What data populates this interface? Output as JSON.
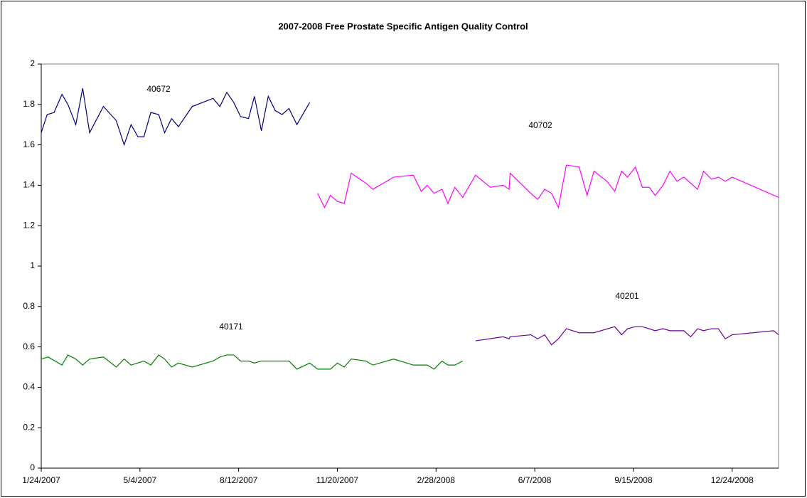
{
  "chart_data": {
    "type": "line",
    "title": "2007-2008 Free Prostate Specific Antigen Quality Control",
    "xlim": [
      "1/24/2007",
      "2/9/2009"
    ],
    "xticks": [
      "1/24/2007",
      "5/4/2007",
      "8/12/2007",
      "11/20/2007",
      "2/28/2008",
      "6/7/2008",
      "9/15/2008",
      "12/24/2008"
    ],
    "ylim": [
      0,
      2
    ],
    "yticks": [
      0,
      0.2,
      0.4,
      0.6,
      0.8,
      1,
      1.2,
      1.4,
      1.6,
      1.8,
      2
    ],
    "grid": false,
    "series": [
      {
        "name": "40672",
        "color": "#000080",
        "x": [
          "1/24/2007",
          "1/30/2007",
          "2/6/2007",
          "2/14/2007",
          "2/20/2007",
          "2/28/2007",
          "3/7/2007",
          "3/14/2007",
          "3/28/2007",
          "4/10/2007",
          "4/18/2007",
          "4/25/2007",
          "5/2/2007",
          "5/8/2007",
          "5/15/2007",
          "5/23/2007",
          "5/29/2007",
          "6/5/2007",
          "6/12/2007",
          "6/26/2007",
          "7/17/2007",
          "7/24/2007",
          "7/31/2007",
          "8/7/2007",
          "8/14/2007",
          "8/22/2007",
          "8/28/2007",
          "9/4/2007",
          "9/11/2007",
          "9/18/2007",
          "9/25/2007",
          "10/2/2007",
          "10/10/2007",
          "10/23/2007"
        ],
        "values": [
          1.66,
          1.75,
          1.76,
          1.85,
          1.8,
          1.7,
          1.88,
          1.66,
          1.79,
          1.72,
          1.6,
          1.7,
          1.64,
          1.64,
          1.76,
          1.75,
          1.66,
          1.73,
          1.69,
          1.79,
          1.83,
          1.79,
          1.86,
          1.81,
          1.74,
          1.73,
          1.84,
          1.67,
          1.84,
          1.77,
          1.75,
          1.78,
          1.7,
          1.81
        ]
      },
      {
        "name": "40702",
        "color": "#ff00ff",
        "x": [
          "10/31/2007",
          "11/7/2007",
          "11/13/2007",
          "11/20/2007",
          "11/27/2007",
          "12/4/2007",
          "12/19/2007",
          "12/26/2007",
          "1/16/2008",
          "2/5/2008",
          "2/13/2008",
          "2/19/2008",
          "2/26/2008",
          "3/5/2008",
          "3/11/2008",
          "3/18/2008",
          "3/26/2008",
          "4/8/2008",
          "4/23/2008",
          "5/6/2008",
          "5/12/2008",
          "5/13/2008",
          "6/3/2008",
          "6/10/2008",
          "6/17/2008",
          "6/24/2008",
          "7/1/2008",
          "7/9/2008",
          "7/22/2008",
          "7/30/2008",
          "8/6/2008",
          "8/19/2008",
          "8/27/2008",
          "9/3/2008",
          "9/9/2008",
          "9/17/2008",
          "9/24/2008",
          "10/1/2008",
          "10/7/2008",
          "10/15/2008",
          "10/22/2008",
          "10/29/2008",
          "11/5/2008",
          "11/12/2008",
          "11/19/2008",
          "11/25/2008",
          "12/3/2008",
          "12/10/2008",
          "12/17/2008",
          "12/24/2008",
          "2/9/2009"
        ],
        "values": [
          1.36,
          1.29,
          1.35,
          1.32,
          1.31,
          1.46,
          1.41,
          1.38,
          1.44,
          1.45,
          1.37,
          1.4,
          1.36,
          1.38,
          1.31,
          1.39,
          1.34,
          1.45,
          1.39,
          1.4,
          1.38,
          1.46,
          1.36,
          1.33,
          1.38,
          1.36,
          1.29,
          1.5,
          1.49,
          1.35,
          1.47,
          1.42,
          1.37,
          1.47,
          1.44,
          1.49,
          1.39,
          1.39,
          1.35,
          1.4,
          1.47,
          1.42,
          1.44,
          1.41,
          1.38,
          1.47,
          1.43,
          1.44,
          1.42,
          1.44,
          1.34
        ]
      },
      {
        "name": "40171",
        "color": "#008000",
        "x": [
          "1/24/2007",
          "1/31/2007",
          "2/14/2007",
          "2/20/2007",
          "2/28/2007",
          "3/7/2007",
          "3/14/2007",
          "3/28/2007",
          "4/10/2007",
          "4/18/2007",
          "4/25/2007",
          "5/8/2007",
          "5/15/2007",
          "5/23/2007",
          "5/29/2007",
          "6/5/2007",
          "6/12/2007",
          "6/26/2007",
          "7/17/2007",
          "7/24/2007",
          "7/31/2007",
          "8/7/2007",
          "8/14/2007",
          "8/22/2007",
          "8/28/2007",
          "9/4/2007",
          "10/2/2007",
          "10/10/2007",
          "10/23/2007",
          "10/31/2007",
          "11/13/2007",
          "11/20/2007",
          "11/27/2007",
          "12/4/2007",
          "12/19/2007",
          "12/26/2007",
          "1/16/2008",
          "2/5/2008",
          "2/19/2008",
          "2/26/2008",
          "3/5/2008",
          "3/11/2008",
          "3/18/2008",
          "3/26/2008"
        ],
        "values": [
          0.54,
          0.55,
          0.51,
          0.56,
          0.54,
          0.51,
          0.54,
          0.55,
          0.5,
          0.54,
          0.51,
          0.53,
          0.51,
          0.56,
          0.54,
          0.5,
          0.52,
          0.5,
          0.53,
          0.55,
          0.56,
          0.56,
          0.53,
          0.53,
          0.52,
          0.53,
          0.53,
          0.49,
          0.52,
          0.49,
          0.49,
          0.52,
          0.5,
          0.54,
          0.53,
          0.51,
          0.54,
          0.51,
          0.51,
          0.49,
          0.53,
          0.51,
          0.51,
          0.53
        ]
      },
      {
        "name": "40201",
        "color": "#660099",
        "x": [
          "4/8/2008",
          "5/6/2008",
          "5/12/2008",
          "5/13/2008",
          "6/3/2008",
          "6/10/2008",
          "6/17/2008",
          "6/24/2008",
          "7/1/2008",
          "7/9/2008",
          "7/22/2008",
          "8/6/2008",
          "8/27/2008",
          "9/3/2008",
          "9/9/2008",
          "9/17/2008",
          "9/24/2008",
          "10/7/2008",
          "10/15/2008",
          "10/22/2008",
          "11/5/2008",
          "11/12/2008",
          "11/19/2008",
          "11/25/2008",
          "12/3/2008",
          "12/10/2008",
          "12/17/2008",
          "12/24/2008",
          "2/4/2009",
          "2/9/2009"
        ],
        "values": [
          0.63,
          0.65,
          0.64,
          0.65,
          0.66,
          0.64,
          0.66,
          0.61,
          0.64,
          0.69,
          0.67,
          0.67,
          0.7,
          0.66,
          0.69,
          0.7,
          0.7,
          0.68,
          0.69,
          0.68,
          0.68,
          0.65,
          0.69,
          0.68,
          0.69,
          0.69,
          0.64,
          0.66,
          0.68,
          0.66
        ]
      }
    ]
  }
}
